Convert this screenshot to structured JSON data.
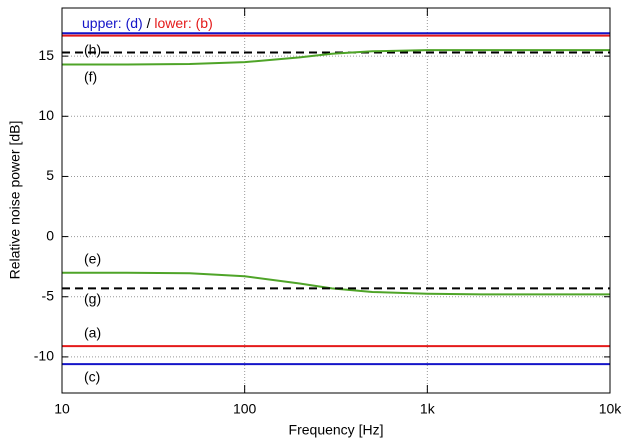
{
  "chart_data": {
    "type": "line",
    "upper_label": "upper:",
    "separator": "/",
    "lower_label": "lower:",
    "xlabel": "Frequency [Hz]",
    "ylabel": "Relative noise power [dB]",
    "xscale": "log",
    "grid": true,
    "x": [
      10,
      20,
      50,
      100,
      200,
      300,
      500,
      1000,
      2000,
      5000,
      10000
    ],
    "xlim": [
      10,
      10000
    ],
    "xticks": [
      10,
      100,
      {
        "value": 1000,
        "label": "1k"
      },
      {
        "value": 10000,
        "label": "10k"
      }
    ],
    "ylim": [
      -13,
      19
    ],
    "yticks": [
      -10,
      -5,
      0,
      5,
      10,
      15
    ],
    "series": [
      {
        "name": "(d)",
        "color": "#1414c8",
        "dash": false,
        "values": [
          16.9,
          16.9,
          16.9,
          16.9,
          16.9,
          16.9,
          16.9,
          16.9,
          16.9,
          16.9,
          16.9
        ]
      },
      {
        "name": "(b)",
        "color": "#e41a1a",
        "dash": false,
        "values": [
          16.7,
          16.7,
          16.7,
          16.7,
          16.7,
          16.7,
          16.7,
          16.7,
          16.7,
          16.7,
          16.7
        ]
      },
      {
        "name": "(h)",
        "color": "#000000",
        "dash": true,
        "values": [
          15.3,
          15.3,
          15.3,
          15.3,
          15.3,
          15.3,
          15.3,
          15.3,
          15.3,
          15.3,
          15.3
        ]
      },
      {
        "name": "(f)",
        "color": "#4fa428",
        "dash": false,
        "values": [
          14.3,
          14.3,
          14.35,
          14.5,
          14.9,
          15.2,
          15.4,
          15.5,
          15.5,
          15.5,
          15.5
        ]
      },
      {
        "name": "(e)",
        "color": "#4fa428",
        "dash": false,
        "values": [
          -3.0,
          -3.0,
          -3.05,
          -3.3,
          -3.9,
          -4.3,
          -4.6,
          -4.75,
          -4.8,
          -4.8,
          -4.8
        ]
      },
      {
        "name": "(g)",
        "color": "#000000",
        "dash": true,
        "values": [
          -4.3,
          -4.3,
          -4.3,
          -4.3,
          -4.3,
          -4.3,
          -4.3,
          -4.3,
          -4.3,
          -4.3,
          -4.3
        ]
      },
      {
        "name": "(a)",
        "color": "#e41a1a",
        "dash": false,
        "values": [
          -9.1,
          -9.1,
          -9.1,
          -9.1,
          -9.1,
          -9.1,
          -9.1,
          -9.1,
          -9.1,
          -9.1,
          -9.1
        ]
      },
      {
        "name": "(c)",
        "color": "#1414c8",
        "dash": false,
        "values": [
          -10.6,
          -10.6,
          -10.6,
          -10.6,
          -10.6,
          -10.6,
          -10.6,
          -10.6,
          -10.6,
          -10.6,
          -10.6
        ]
      }
    ]
  }
}
